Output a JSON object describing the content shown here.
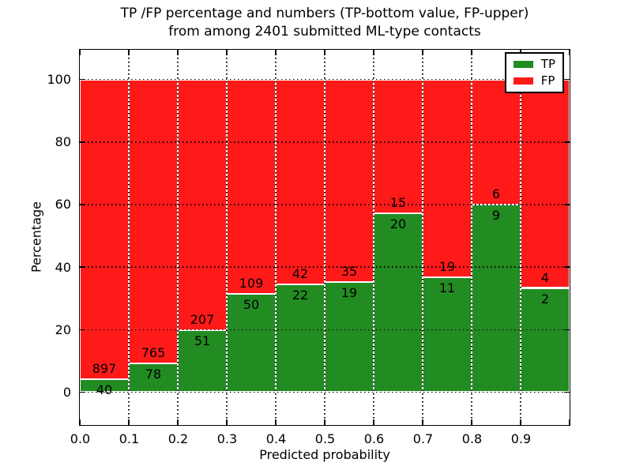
{
  "chart_data": {
    "type": "stacked_bar_percentage",
    "title_lines": [
      "TP /FP percentage and numbers (TP-bottom value, FP-upper)",
      "from among 2401 submitted ML-type contacts"
    ],
    "xlabel": "Predicted probability",
    "ylabel": "Percentage",
    "xlim": [
      0.0,
      1.0
    ],
    "ylim": [
      -10.5,
      109.5
    ],
    "bin_width": 0.1,
    "bin_starts": [
      0.0,
      0.1,
      0.2,
      0.3,
      0.4,
      0.5,
      0.6,
      0.7,
      0.8,
      0.9
    ],
    "xtick_labels": [
      "0.0",
      "0.1",
      "0.2",
      "0.3",
      "0.4",
      "0.5",
      "0.6",
      "0.7",
      "0.8",
      "0.9"
    ],
    "ytick_values": [
      0,
      20,
      40,
      60,
      80,
      100
    ],
    "ytick_labels": [
      "0",
      "20",
      "40",
      "60",
      "80",
      "100"
    ],
    "grid": true,
    "grid_style": "dotted",
    "legend_position": "upper right",
    "series": [
      {
        "name": "TP",
        "color": "#228b22",
        "counts": [
          40,
          78,
          51,
          50,
          22,
          19,
          20,
          11,
          9,
          2
        ],
        "percent": [
          4.27,
          9.25,
          19.77,
          31.45,
          34.38,
          35.19,
          57.14,
          36.67,
          60.0,
          33.33
        ]
      },
      {
        "name": "FP",
        "color": "#ff1a1a",
        "counts": [
          897,
          765,
          207,
          109,
          42,
          35,
          15,
          19,
          6,
          4
        ],
        "percent": [
          95.73,
          90.75,
          80.23,
          68.55,
          65.62,
          64.81,
          42.86,
          63.33,
          40.0,
          66.67
        ]
      }
    ]
  }
}
